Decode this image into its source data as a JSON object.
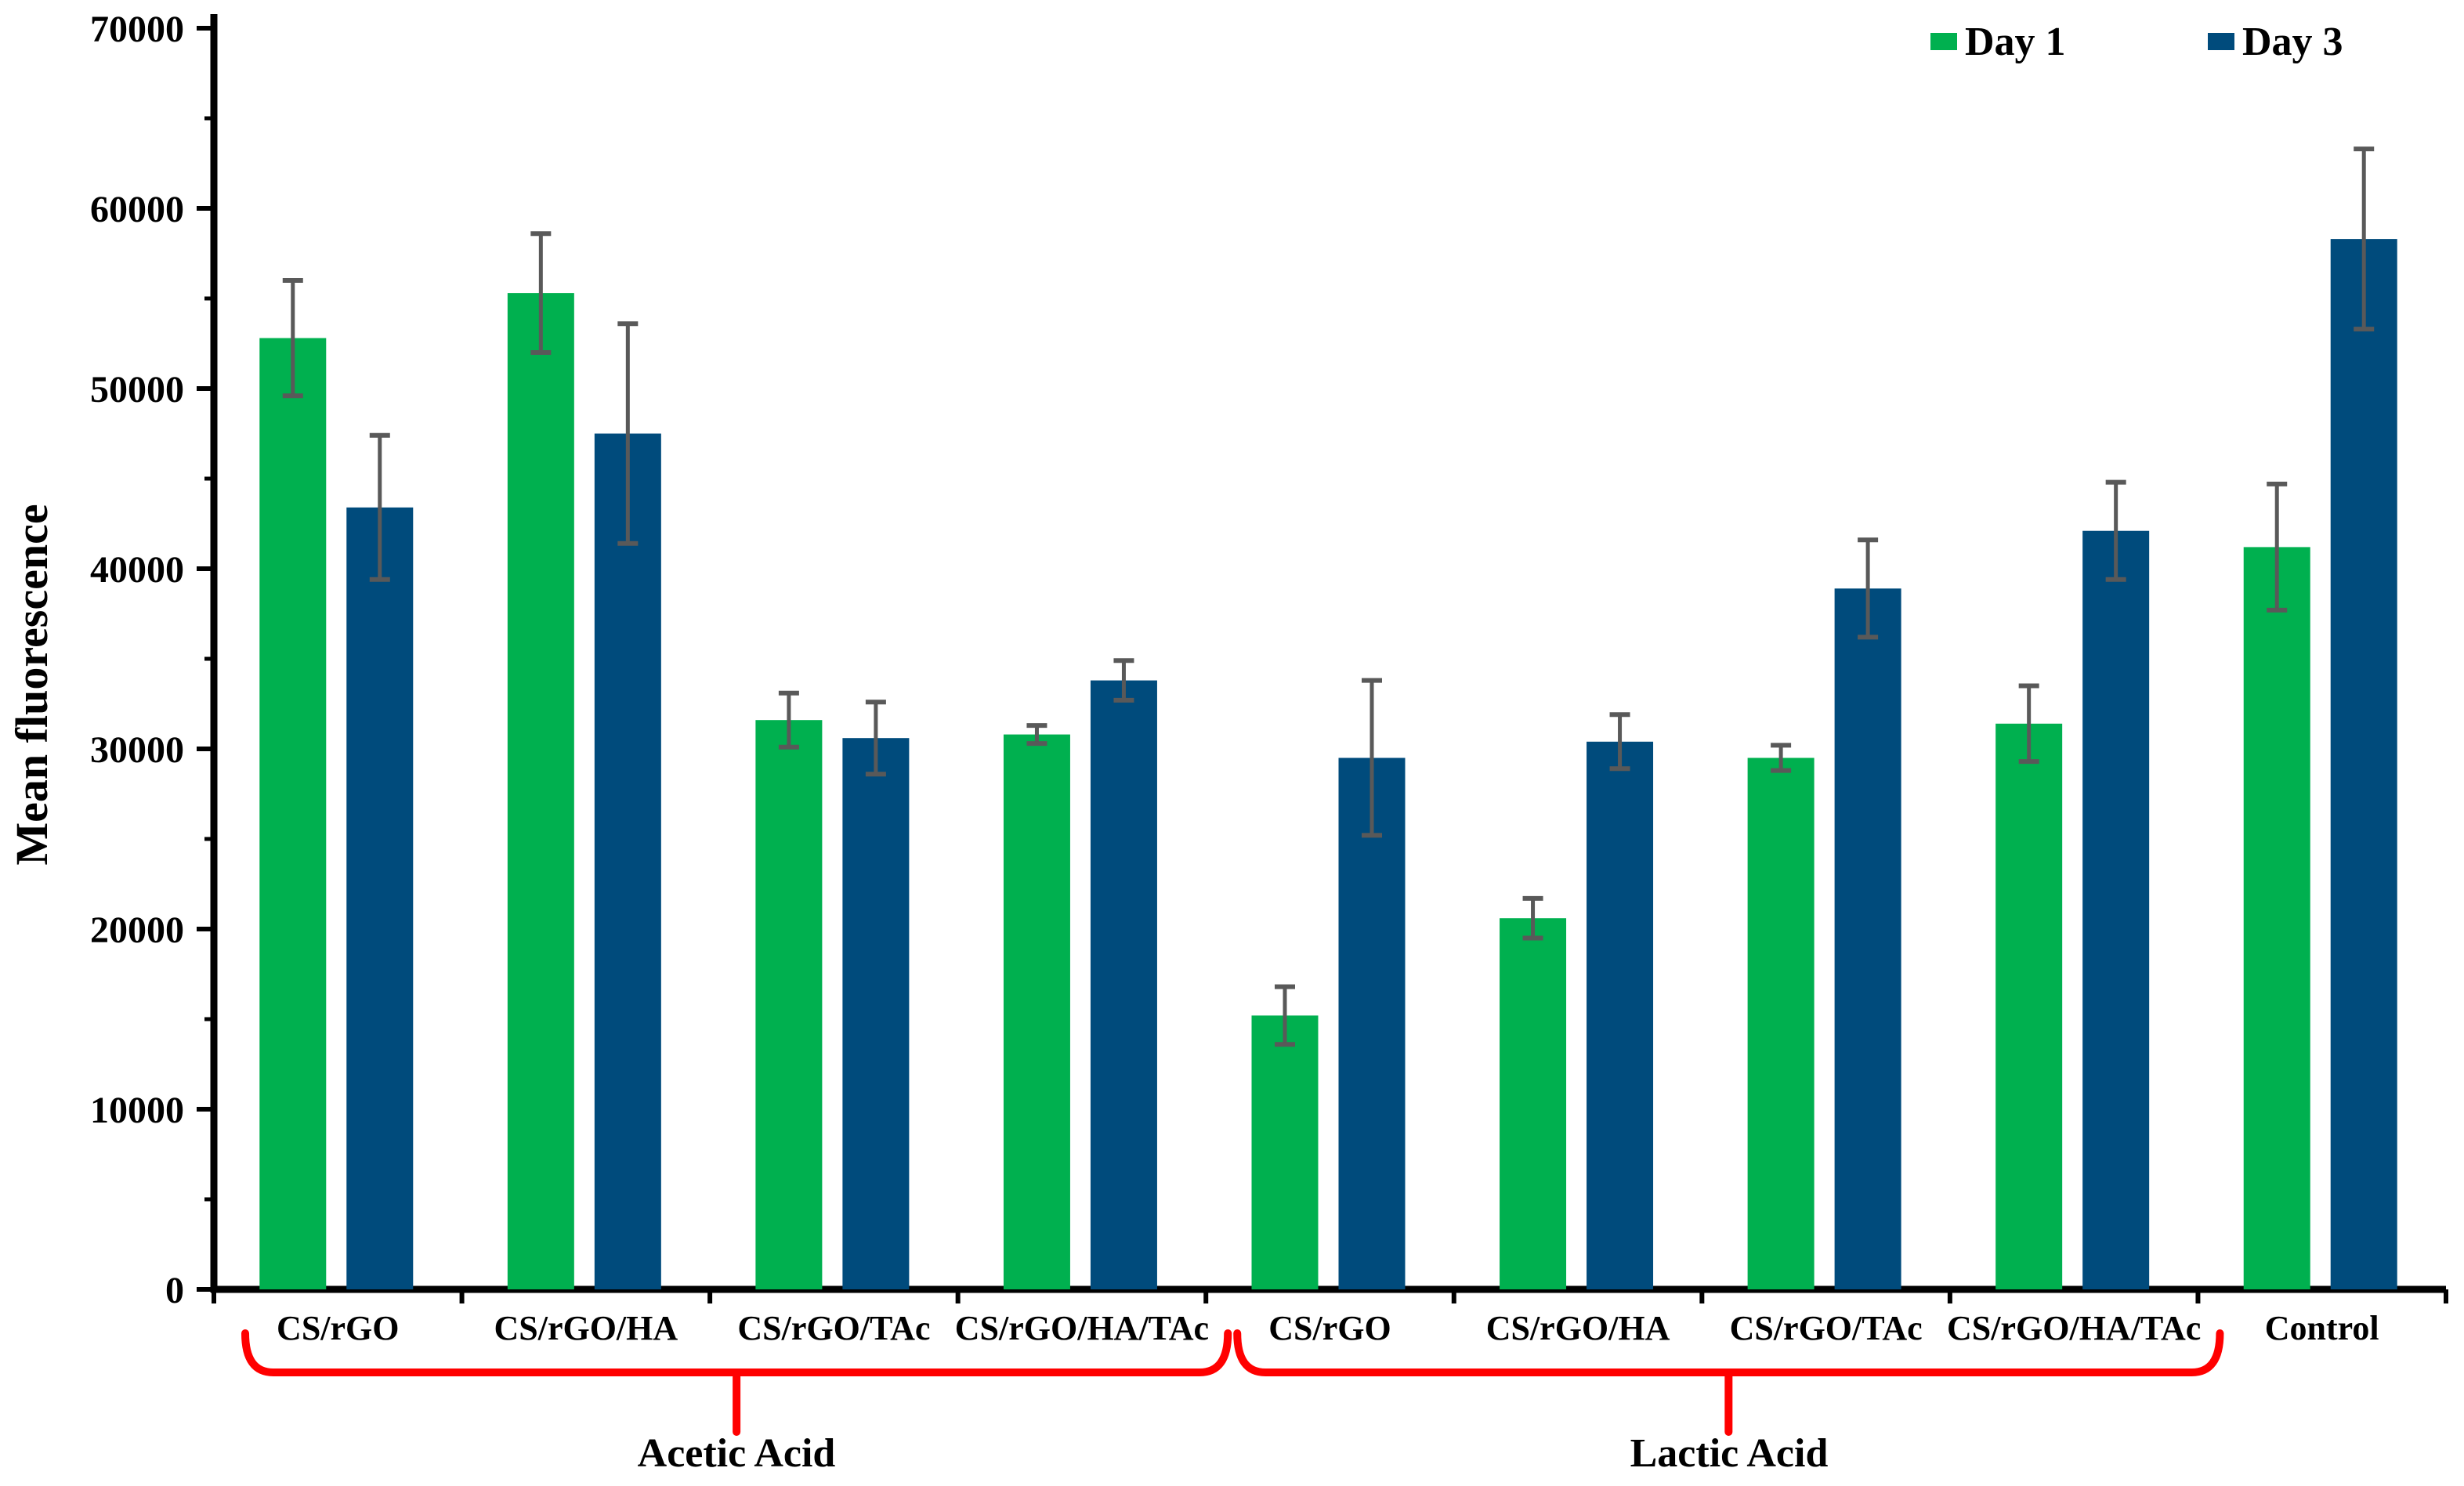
{
  "chart_data": {
    "type": "bar",
    "title": "",
    "xlabel": "",
    "ylabel": "Mean fluorescence",
    "ylim": [
      0,
      70000
    ],
    "yticks": [
      0,
      10000,
      20000,
      30000,
      40000,
      50000,
      60000,
      70000
    ],
    "ytick_minor_step": 5000,
    "grid": false,
    "legend_position": "top-right",
    "categories": [
      "CS/rGO",
      "CS/rGO/HA",
      "CS/rGO/TAc",
      "CS/rGO/HA/TAc",
      "CS/rGO",
      "CS/rGO/HA",
      "CS/rGO/TAc",
      "CS/rGO/HA/TAc",
      "Control"
    ],
    "series": [
      {
        "name": "Day 1",
        "color": "#00B04F",
        "values": [
          52800,
          55300,
          31600,
          30800,
          15200,
          20600,
          29500,
          31400,
          41200
        ],
        "errors": [
          3200,
          3300,
          1500,
          500,
          1600,
          1100,
          700,
          2100,
          3500
        ]
      },
      {
        "name": "Day 3",
        "color": "#004B7C",
        "values": [
          43400,
          47500,
          30600,
          33800,
          29500,
          30400,
          38900,
          42100,
          58300
        ],
        "errors": [
          4000,
          6100,
          2000,
          1100,
          4300,
          1500,
          2700,
          2700,
          5000
        ]
      }
    ],
    "error_bar_color": "#595959",
    "axis_color": "#000000",
    "group_brackets": [
      {
        "label": "Acetic Acid",
        "from": 0,
        "to": 3,
        "color": "#FF0000"
      },
      {
        "label": "Lactic Acid",
        "from": 4,
        "to": 7,
        "color": "#FF0000"
      }
    ]
  }
}
